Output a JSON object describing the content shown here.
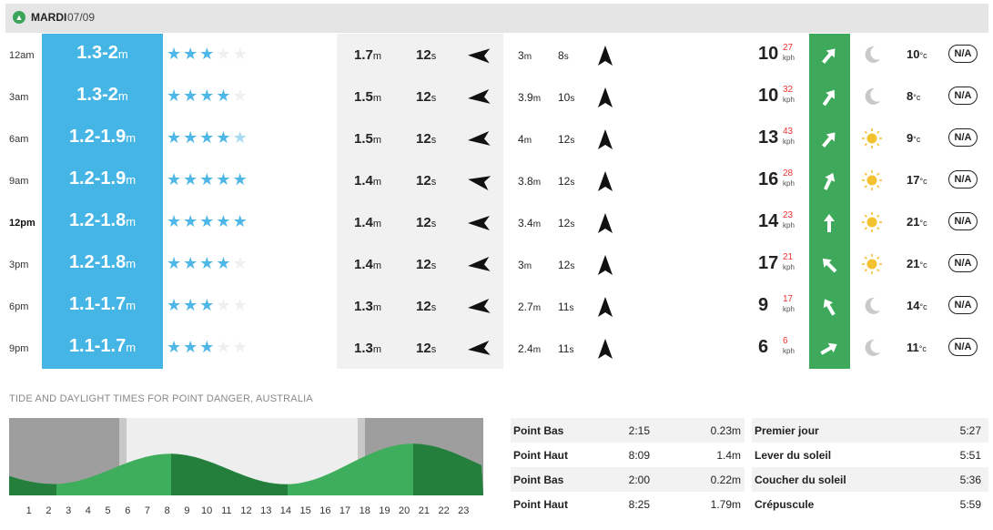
{
  "header": {
    "day": "MARDI",
    "date": "07/09",
    "toggle_icon": "chevron-up-icon"
  },
  "colors": {
    "swell": "#45b5e6",
    "wind": "#3ea85b",
    "star": "#4fb7e6",
    "gust": "#e33333",
    "tide_dark": "#247f3d",
    "tide_light": "#3fae5c",
    "night": "#9e9e9e"
  },
  "rows": [
    {
      "time": "12am",
      "bold": false,
      "surf": "1.3-2",
      "surf_unit": "m",
      "stars": [
        1,
        1,
        1,
        0,
        0
      ],
      "primary_height": "1.7",
      "primary_height_unit": "m",
      "primary_period": "12",
      "primary_period_unit": "s",
      "primary_dir": 102,
      "secondary_height": "3",
      "secondary_height_unit": "m",
      "secondary_period": "8",
      "secondary_period_unit": "s",
      "secondary_dir": 0,
      "wind": "10",
      "gust": "27",
      "wind_unit": "kph",
      "wind_dir": 40,
      "weather": "moon-icon",
      "temp": "10",
      "temp_unit": "°c",
      "rating": "N/A"
    },
    {
      "time": "3am",
      "bold": false,
      "surf": "1.3-2",
      "surf_unit": "m",
      "stars": [
        1,
        1,
        1,
        1,
        0
      ],
      "primary_height": "1.5",
      "primary_height_unit": "m",
      "primary_period": "12",
      "primary_period_unit": "s",
      "primary_dir": 95,
      "secondary_height": "3.9",
      "secondary_height_unit": "m",
      "secondary_period": "10",
      "secondary_period_unit": "s",
      "secondary_dir": 0,
      "wind": "10",
      "gust": "32",
      "wind_unit": "kph",
      "wind_dir": 35,
      "weather": "moon-icon",
      "temp": "8",
      "temp_unit": "°c",
      "rating": "N/A"
    },
    {
      "time": "6am",
      "bold": false,
      "surf": "1.2-1.9",
      "surf_unit": "m",
      "stars": [
        1,
        1,
        1,
        1,
        0.5
      ],
      "primary_height": "1.5",
      "primary_height_unit": "m",
      "primary_period": "12",
      "primary_period_unit": "s",
      "primary_dir": 95,
      "secondary_height": "4",
      "secondary_height_unit": "m",
      "secondary_period": "12",
      "secondary_period_unit": "s",
      "secondary_dir": 0,
      "wind": "13",
      "gust": "43",
      "wind_unit": "kph",
      "wind_dir": 40,
      "weather": "sun-icon",
      "temp": "9",
      "temp_unit": "°c",
      "rating": "N/A"
    },
    {
      "time": "9am",
      "bold": false,
      "surf": "1.2-1.9",
      "surf_unit": "m",
      "stars": [
        1,
        1,
        1,
        1,
        1
      ],
      "primary_height": "1.4",
      "primary_height_unit": "m",
      "primary_period": "12",
      "primary_period_unit": "s",
      "primary_dir": 110,
      "secondary_height": "3.8",
      "secondary_height_unit": "m",
      "secondary_period": "12",
      "secondary_period_unit": "s",
      "secondary_dir": 0,
      "wind": "16",
      "gust": "28",
      "wind_unit": "kph",
      "wind_dir": 25,
      "weather": "sun-icon",
      "temp": "17",
      "temp_unit": "°c",
      "rating": "N/A"
    },
    {
      "time": "12pm",
      "bold": true,
      "surf": "1.2-1.8",
      "surf_unit": "m",
      "stars": [
        1,
        1,
        1,
        1,
        1
      ],
      "primary_height": "1.4",
      "primary_height_unit": "m",
      "primary_period": "12",
      "primary_period_unit": "s",
      "primary_dir": 100,
      "secondary_height": "3.4",
      "secondary_height_unit": "m",
      "secondary_period": "12",
      "secondary_period_unit": "s",
      "secondary_dir": 0,
      "wind": "14",
      "gust": "23",
      "wind_unit": "kph",
      "wind_dir": 0,
      "weather": "sun-icon",
      "temp": "21",
      "temp_unit": "°c",
      "rating": "N/A"
    },
    {
      "time": "3pm",
      "bold": false,
      "surf": "1.2-1.8",
      "surf_unit": "m",
      "stars": [
        1,
        1,
        1,
        1,
        0
      ],
      "primary_height": "1.4",
      "primary_height_unit": "m",
      "primary_period": "12",
      "primary_period_unit": "s",
      "primary_dir": 95,
      "secondary_height": "3",
      "secondary_height_unit": "m",
      "secondary_period": "12",
      "secondary_period_unit": "s",
      "secondary_dir": 0,
      "wind": "17",
      "gust": "21",
      "wind_unit": "kph",
      "wind_dir": -45,
      "weather": "sun-icon",
      "temp": "21",
      "temp_unit": "°c",
      "rating": "N/A"
    },
    {
      "time": "6pm",
      "bold": false,
      "surf": "1.1-1.7",
      "surf_unit": "m",
      "stars": [
        1,
        1,
        1,
        0,
        0
      ],
      "primary_height": "1.3",
      "primary_height_unit": "m",
      "primary_period": "12",
      "primary_period_unit": "s",
      "primary_dir": 95,
      "secondary_height": "2.7",
      "secondary_height_unit": "m",
      "secondary_period": "11",
      "secondary_period_unit": "s",
      "secondary_dir": 0,
      "wind": "9",
      "gust": "17",
      "wind_unit": "kph",
      "wind_dir": -30,
      "weather": "moon-icon",
      "temp": "14",
      "temp_unit": "°c",
      "rating": "N/A"
    },
    {
      "time": "9pm",
      "bold": false,
      "surf": "1.1-1.7",
      "surf_unit": "m",
      "stars": [
        1,
        1,
        1,
        0,
        0
      ],
      "primary_height": "1.3",
      "primary_height_unit": "m",
      "primary_period": "12",
      "primary_period_unit": "s",
      "primary_dir": 95,
      "secondary_height": "2.4",
      "secondary_height_unit": "m",
      "secondary_period": "11",
      "secondary_period_unit": "s",
      "secondary_dir": 0,
      "wind": "6",
      "gust": "6",
      "wind_unit": "kph",
      "wind_dir": 60,
      "weather": "moon-icon",
      "temp": "11",
      "temp_unit": "°c",
      "rating": "N/A"
    }
  ],
  "tide": {
    "title": "TIDE AND DAYLIGHT TIMES FOR POINT DANGER, AUSTRALIA",
    "hours": [
      "1",
      "2",
      "3",
      "4",
      "5",
      "6",
      "7",
      "8",
      "9",
      "10",
      "11",
      "12",
      "13",
      "14",
      "15",
      "16",
      "17",
      "18",
      "19",
      "20",
      "21",
      "22",
      "23"
    ],
    "events": [
      {
        "name": "Point Bas",
        "time": "2:15",
        "height": "0.23m"
      },
      {
        "name": "Point Haut",
        "time": "8:09",
        "height": "1.4m"
      },
      {
        "name": "Point Bas",
        "time": "2:00",
        "height": "0.22m"
      },
      {
        "name": "Point Haut",
        "time": "8:25",
        "height": "1.79m"
      }
    ],
    "daylight": [
      {
        "name": "Premier jour",
        "time": "5:27"
      },
      {
        "name": "Lever du soleil",
        "time": "5:51"
      },
      {
        "name": "Coucher du soleil",
        "time": "5:36"
      },
      {
        "name": "Crépuscule",
        "time": "5:59"
      }
    ]
  }
}
